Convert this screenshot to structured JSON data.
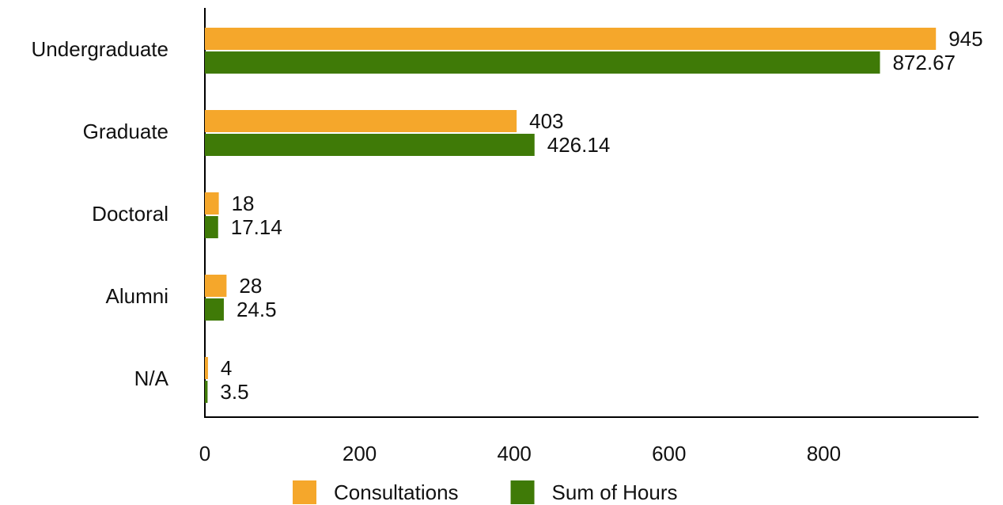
{
  "chart_data": {
    "type": "hbar",
    "categories": [
      "Undergraduate",
      "Graduate",
      "Doctoral",
      "Alumni",
      "N/A"
    ],
    "series": [
      {
        "name": "Consultations",
        "color": "#f5a72b",
        "values": [
          945,
          403,
          18,
          28,
          4
        ]
      },
      {
        "name": "Sum of Hours",
        "color": "#3f7a07",
        "values": [
          872.67,
          426.14,
          17.14,
          24.5,
          3.5
        ]
      }
    ],
    "xlim": [
      0,
      1000
    ],
    "xticks": [
      0,
      200,
      400,
      600,
      800
    ],
    "legend": "bottom"
  }
}
